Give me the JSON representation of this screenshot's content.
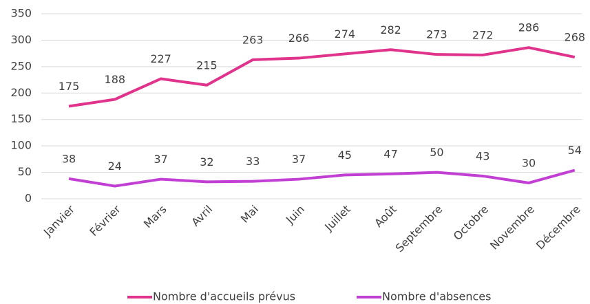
{
  "chart_data": {
    "type": "line",
    "categories": [
      "Janvier",
      "Février",
      "Mars",
      "Avril",
      "Mai",
      "Juin",
      "Juillet",
      "Août",
      "Septembre",
      "Octobre",
      "Novembre",
      "Décembre"
    ],
    "series": [
      {
        "name": "Nombre d'accueils prévus",
        "color": "#e0338b",
        "values": [
          175,
          188,
          227,
          215,
          263,
          266,
          274,
          282,
          273,
          272,
          286,
          268
        ]
      },
      {
        "name": "Nombre d'absences",
        "color": "#c13fd3",
        "values": [
          38,
          24,
          37,
          32,
          33,
          37,
          45,
          47,
          50,
          43,
          30,
          54
        ]
      }
    ],
    "ylim": [
      0,
      350
    ],
    "yticks": [
      0,
      50,
      100,
      150,
      200,
      250,
      300,
      350
    ],
    "grid": true,
    "legend": "bottom"
  }
}
